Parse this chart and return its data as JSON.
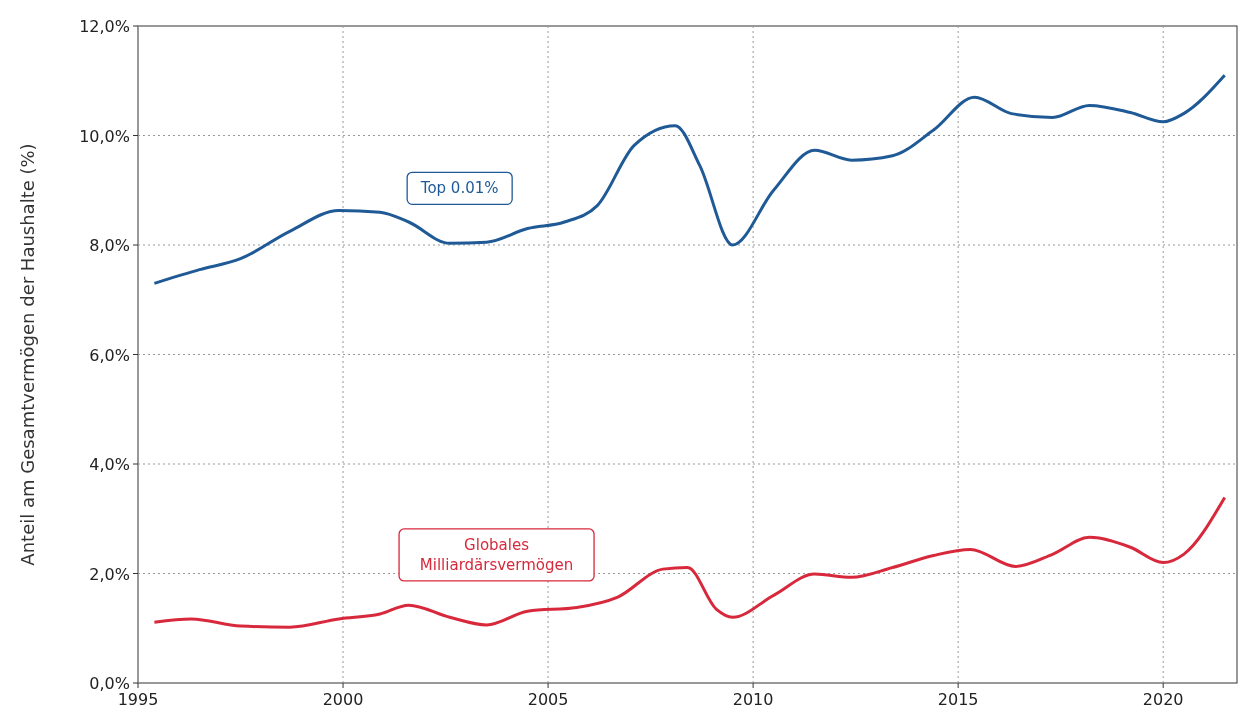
{
  "chart_data": {
    "type": "line",
    "ylabel": "Anteil am Gesamtvermögen der Haushalte (%)",
    "xlim": [
      1995,
      2021.8
    ],
    "xticks": [
      1995,
      2000,
      2005,
      2010,
      2015,
      2020
    ],
    "ylim": [
      0,
      12
    ],
    "yticks": [
      {
        "value": 0,
        "label": "0,0%"
      },
      {
        "value": 2,
        "label": "2,0%"
      },
      {
        "value": 4,
        "label": "4,0%"
      },
      {
        "value": 6,
        "label": "6,0%"
      },
      {
        "value": 8,
        "label": "8,0%"
      },
      {
        "value": 10,
        "label": "10,0%"
      },
      {
        "value": 12,
        "label": "12,0%"
      }
    ],
    "grid": true,
    "marker": "none",
    "line_style": "solid",
    "series": [
      {
        "name": "Top 0.01%",
        "color": "#1f5a96",
        "x": [
          1995.4,
          1996.5,
          1997.5,
          1998.7,
          1999.9,
          2000.9,
          2001.6,
          2002.6,
          2003.5,
          2004.5,
          2005.4,
          2006.2,
          2007.1,
          2008.1,
          2008.7,
          2009.5,
          2010.5,
          2011.5,
          2012.4,
          2013.4,
          2014.4,
          2015.4,
          2016.3,
          2017.3,
          2018.2,
          2019.2,
          2020.0,
          2020.5,
          2021.5
        ],
        "values": [
          7.3,
          7.55,
          7.75,
          8.25,
          8.63,
          8.6,
          8.42,
          8.03,
          8.05,
          8.3,
          8.42,
          8.72,
          9.82,
          10.18,
          9.45,
          8.0,
          9.0,
          9.73,
          9.55,
          9.63,
          10.1,
          10.7,
          10.4,
          10.33,
          10.55,
          10.42,
          10.25,
          10.4,
          11.1
        ]
      },
      {
        "name": "Globales Milliardärsvermögen",
        "color": "#d8283c",
        "x": [
          1995.4,
          1996.3,
          1997.5,
          1998.7,
          1999.9,
          2000.9,
          2001.6,
          2002.6,
          2003.5,
          2004.5,
          2005.7,
          2006.7,
          2007.8,
          2008.4,
          2009.1,
          2009.5,
          2010.5,
          2011.5,
          2012.4,
          2013.4,
          2014.4,
          2015.3,
          2016.4,
          2017.3,
          2018.2,
          2019.2,
          2020.0,
          2020.5,
          2021.5
        ],
        "values": [
          1.11,
          1.17,
          1.04,
          1.02,
          1.17,
          1.26,
          1.42,
          1.2,
          1.06,
          1.31,
          1.38,
          1.57,
          2.08,
          2.11,
          1.35,
          1.2,
          1.6,
          1.99,
          1.93,
          2.11,
          2.33,
          2.44,
          2.13,
          2.35,
          2.66,
          2.48,
          2.2,
          2.35,
          3.39
        ]
      }
    ]
  }
}
